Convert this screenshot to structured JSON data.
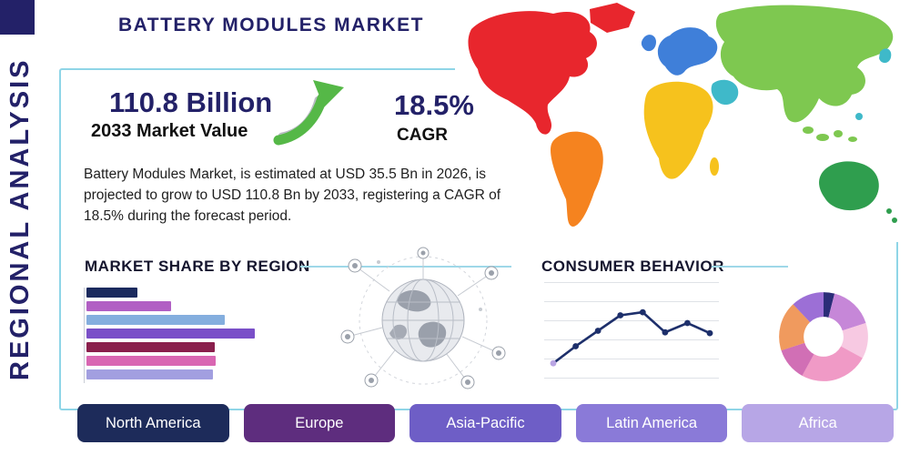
{
  "header": {
    "title": "BATTERY MODULES MARKET",
    "side_label": "REGIONAL ANALYSIS"
  },
  "highlights": {
    "market_value": "110.8 Billion",
    "market_value_caption": "2033 Market Value",
    "cagr_value": "18.5%",
    "cagr_caption": "CAGR",
    "description": "Battery Modules Market, is estimated at USD 35.5 Bn in 2026, is projected to grow to USD 110.8 Bn by 2033, registering a CAGR of 18.5% during the forecast period."
  },
  "sections": {
    "market_share_title": "MARKET SHARE BY REGION",
    "consumer_behavior_title": "CONSUMER BEHAVIOR"
  },
  "accent_colors": {
    "navy": "#232168",
    "panel_border": "#8fd5e7",
    "arrow_green": "#55b847"
  },
  "map": {
    "colors": {
      "north_america": "#e8262d",
      "greenland": "#e8262d",
      "south_america": "#f5831f",
      "europe": "#3f7fd9",
      "africa": "#f6c21d",
      "asia": "#7ec850",
      "middle_east": "#3fb9c9",
      "east_teal": "#3fb9c9",
      "oceania": "#2f9e4e"
    }
  },
  "region_buttons": [
    {
      "label": "North America",
      "color": "#1d2b5a"
    },
    {
      "label": "Europe",
      "color": "#5e2d7e"
    },
    {
      "label": "Asia-Pacific",
      "color": "#6e5ec6"
    },
    {
      "label": "Latin America",
      "color": "#8a7ad8"
    },
    {
      "label": "Africa",
      "color": "#b7a6e6"
    }
  ],
  "chart_data": [
    {
      "id": "market_share_by_region",
      "type": "bar",
      "orientation": "horizontal",
      "title": "MARKET SHARE BY REGION",
      "categories": [
        "",
        "",
        "",
        "",
        "",
        "",
        ""
      ],
      "values": [
        30,
        50,
        82,
        100,
        76,
        77,
        75
      ],
      "colors": [
        "#1b2a5e",
        "#b15fc4",
        "#84aede",
        "#7a4fc8",
        "#8a1f4c",
        "#d966b2",
        "#a29fe0"
      ],
      "note": "No axis or data labels shown; values are relative bar lengths with longest bar = 100."
    },
    {
      "id": "consumer_behavior",
      "type": "line",
      "title": "CONSUMER BEHAVIOR",
      "x": [
        1,
        2,
        3,
        4,
        5,
        6,
        7,
        8
      ],
      "values": [
        8,
        30,
        50,
        70,
        74,
        48,
        60,
        47
      ],
      "line_color": "#1d2f6b",
      "first_marker_color": "#b9a5e3",
      "grid": true,
      "note": "No axis labels shown; values estimated on a 0-100 index."
    },
    {
      "id": "regional_mix_donut",
      "type": "pie",
      "donut": true,
      "segments": [
        {
          "value": 4,
          "color": "#2b2d78"
        },
        {
          "value": 16,
          "color": "#c687d8"
        },
        {
          "value": 13,
          "color": "#f7c9e2"
        },
        {
          "value": 25,
          "color": "#f09ac6"
        },
        {
          "value": 12,
          "color": "#d16fb5"
        },
        {
          "value": 18,
          "color": "#f09a5e"
        },
        {
          "value": 12,
          "color": "#9c6fd6"
        }
      ],
      "note": "Unlabeled decorative donut; segment shares estimated, clockwise from 12 o'clock."
    }
  ]
}
